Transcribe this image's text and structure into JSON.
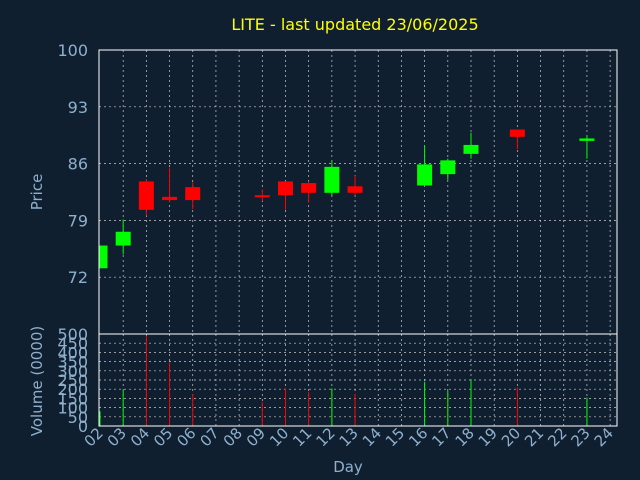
{
  "colors": {
    "background": "#0f1f30",
    "title": "#ffff00",
    "axis_text": "#8fb0cc",
    "frame": "#ffffff",
    "up": "#00ff00",
    "down": "#ff0000"
  },
  "chart_data": [
    {
      "type": "candlestick",
      "title": "LITE - last updated 23/06/2025",
      "ylabel": "Price",
      "ylim": [
        65,
        100
      ],
      "yticks": [
        100,
        93,
        86,
        79,
        72
      ],
      "grid": true,
      "candles": [
        {
          "day": 2,
          "open": 73.1,
          "high": 75.9,
          "low": 73.1,
          "close": 75.9
        },
        {
          "day": 3,
          "open": 75.9,
          "high": 79.1,
          "low": 74.8,
          "close": 77.6
        },
        {
          "day": 4,
          "open": 83.8,
          "high": 84.1,
          "low": 79.6,
          "close": 80.3
        },
        {
          "day": 5,
          "open": 81.9,
          "high": 85.5,
          "low": 81.3,
          "close": 81.5
        },
        {
          "day": 6,
          "open": 83.1,
          "high": 83.7,
          "low": 80.4,
          "close": 81.5
        },
        {
          "day": 9,
          "open": 82.1,
          "high": 82.8,
          "low": 81.4,
          "close": 82.0
        },
        {
          "day": 10,
          "open": 83.8,
          "high": 83.8,
          "low": 80.3,
          "close": 82.1
        },
        {
          "day": 11,
          "open": 83.6,
          "high": 83.8,
          "low": 81.2,
          "close": 82.4
        },
        {
          "day": 12,
          "open": 82.4,
          "high": 86.4,
          "low": 82.0,
          "close": 85.6
        },
        {
          "day": 13,
          "open": 83.2,
          "high": 84.5,
          "low": 82.1,
          "close": 82.4
        },
        {
          "day": 16,
          "open": 83.3,
          "high": 88.2,
          "low": 83.3,
          "close": 85.9
        },
        {
          "day": 17,
          "open": 84.7,
          "high": 86.6,
          "low": 84.0,
          "close": 86.4
        },
        {
          "day": 18,
          "open": 87.2,
          "high": 89.8,
          "low": 86.6,
          "close": 88.3
        },
        {
          "day": 20,
          "open": 90.2,
          "high": 90.2,
          "low": 87.8,
          "close": 89.3
        },
        {
          "day": 23,
          "open": 88.8,
          "high": 89.5,
          "low": 86.6,
          "close": 89.1
        }
      ]
    },
    {
      "type": "bar",
      "ylabel": "Volume (0000)",
      "xlabel": "Day",
      "ylim": [
        0,
        500
      ],
      "yticks": [
        0,
        50,
        100,
        150,
        200,
        250,
        300,
        350,
        400,
        450,
        500
      ],
      "categories": [
        "02",
        "03",
        "04",
        "05",
        "06",
        "07",
        "08",
        "09",
        "10",
        "11",
        "12",
        "13",
        "14",
        "15",
        "16",
        "17",
        "18",
        "19",
        "20",
        "21",
        "22",
        "23",
        "24"
      ],
      "bars": [
        {
          "day": 2,
          "value": 80,
          "direction": "up"
        },
        {
          "day": 3,
          "value": 195,
          "direction": "up"
        },
        {
          "day": 4,
          "value": 490,
          "direction": "down"
        },
        {
          "day": 5,
          "value": 345,
          "direction": "down"
        },
        {
          "day": 6,
          "value": 175,
          "direction": "down"
        },
        {
          "day": 9,
          "value": 130,
          "direction": "down"
        },
        {
          "day": 10,
          "value": 205,
          "direction": "down"
        },
        {
          "day": 11,
          "value": 185,
          "direction": "down"
        },
        {
          "day": 12,
          "value": 205,
          "direction": "up"
        },
        {
          "day": 13,
          "value": 175,
          "direction": "down"
        },
        {
          "day": 16,
          "value": 240,
          "direction": "up"
        },
        {
          "day": 17,
          "value": 190,
          "direction": "up"
        },
        {
          "day": 18,
          "value": 255,
          "direction": "up"
        },
        {
          "day": 20,
          "value": 210,
          "direction": "down"
        },
        {
          "day": 23,
          "value": 155,
          "direction": "up"
        }
      ]
    }
  ]
}
